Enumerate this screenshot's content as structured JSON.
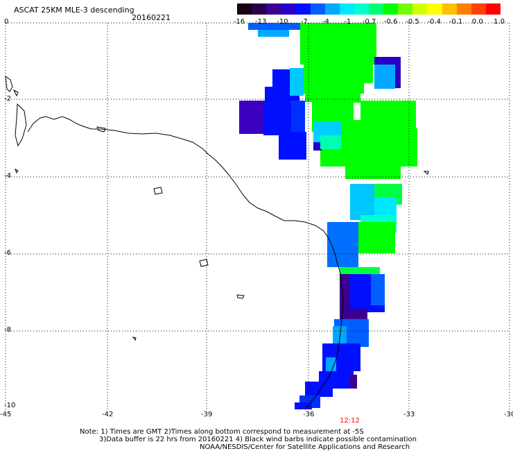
{
  "header": {
    "title": "ASCAT 25KM MLE-3 descending",
    "date": "20160221"
  },
  "colorbar": {
    "labels": [
      "-16",
      "-13",
      "-10",
      "-7",
      "-4",
      "-1",
      "-0.7",
      "-0.6",
      "-0.5",
      "-0.4",
      "-0.1",
      "0.0",
      "1.0"
    ],
    "colors": [
      "#1a0010",
      "#2a004a",
      "#3c0090",
      "#2800c8",
      "#0010ff",
      "#0060ff",
      "#00a8ff",
      "#00e8ff",
      "#00ffd0",
      "#00ff70",
      "#00ff00",
      "#70ff00",
      "#d0ff00",
      "#ffff00",
      "#ffc000",
      "#ff8000",
      "#ff4000",
      "#ff0000"
    ]
  },
  "axes": {
    "x_ticks": [
      "-45",
      "-42",
      "-39",
      "-36",
      "-33",
      "-30"
    ],
    "y_ticks": [
      "0",
      "-2",
      "-4",
      "-6",
      "-8",
      "-10"
    ]
  },
  "time_label": "12:12",
  "notes": {
    "line1": "Note: 1) Times are GMT 2)Times along bottom correspond to measurement at -5S",
    "line2": "3)Data buffer is 22 hrs from 20160221 4) Black wind barbs indicate possible contamination",
    "line3": "NOAA/NESDIS/Center for Satellite Applications and Research"
  }
}
